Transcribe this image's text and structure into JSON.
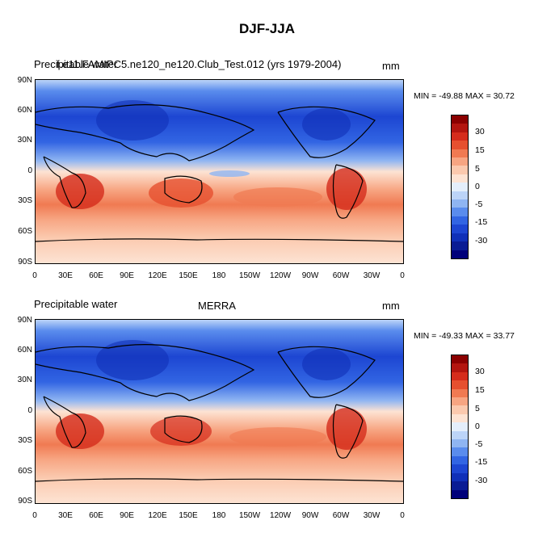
{
  "figure": {
    "title": "DJF-JJA"
  },
  "panels": [
    {
      "left_label": "Precipitable water",
      "center_label": "f.e11.FAMIPC5.ne120_ne120.Club_Test.012 (yrs 1979-2004)",
      "units": "mm",
      "minmax": "MIN = -49.88 MAX =  30.72"
    },
    {
      "left_label": "Precipitable water",
      "center_label": "MERRA",
      "units": "mm",
      "minmax": "MIN = -49.33 MAX =  33.77"
    }
  ],
  "axes": {
    "lat_labels": [
      "90N",
      "60N",
      "30N",
      "0",
      "30S",
      "60S",
      "90S"
    ],
    "lon_labels": [
      "0",
      "30E",
      "60E",
      "90E",
      "120E",
      "150E",
      "180",
      "150W",
      "120W",
      "90W",
      "60W",
      "30W",
      "0"
    ]
  },
  "colorbar": {
    "labels": [
      "30",
      "15",
      "5",
      "0",
      "-5",
      "-15",
      "-30"
    ],
    "colors": [
      "#8b0000",
      "#b3150f",
      "#d52c1c",
      "#e6502f",
      "#f07a52",
      "#f7a582",
      "#fbc9ae",
      "#fde3d3",
      "#e4eefb",
      "#bcd4f8",
      "#8fb5f2",
      "#5a8ced",
      "#3265e3",
      "#1d46d2",
      "#1030b8",
      "#0a1c94",
      "#00007a"
    ]
  }
}
